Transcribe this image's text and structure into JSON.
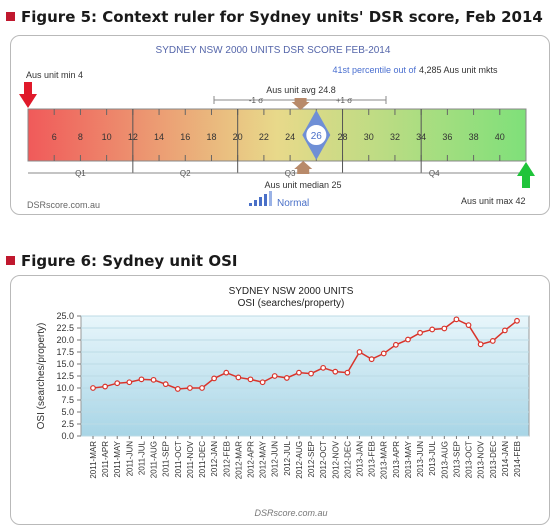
{
  "figure5": {
    "heading": "Figure 5: Context ruler for Sydney units' DSR score, Feb 2014",
    "ruler_title": "SYDNEY NSW 2000 UNITS DSR SCORE FEB-2014",
    "percentile_text": "41st percentile out of",
    "market_count": "4,285 Aus unit mkts",
    "min_label": "Aus unit min 4",
    "max_label": "Aus unit max 42",
    "avg_label": "Aus unit avg 24.8",
    "median_label": "Aus unit median 25",
    "sigma_left": "-1 σ",
    "sigma_right": "+1 σ",
    "score": "26",
    "signal": "Normal",
    "footer": "DSRscore.com.au",
    "quartiles": [
      "Q1",
      "Q2",
      "Q3",
      "Q4"
    ],
    "colors": {
      "low": "#f05a5a",
      "mid": "#e8d98a",
      "high": "#7fe07a",
      "marker": "#6f8fd6",
      "arrow_min": "#e0192a",
      "arrow_max": "#1fc43a"
    },
    "chart_data": {
      "type": "ruler",
      "min": 4,
      "max": 42,
      "ticks": [
        "6",
        "8",
        "10",
        "12",
        "14",
        "16",
        "18",
        "20",
        "22",
        "24",
        "26",
        "28",
        "30",
        "32",
        "34",
        "36",
        "38",
        "40"
      ],
      "score": 26,
      "average": 24.8,
      "median": 25,
      "quartile_bounds": [
        12,
        20,
        28,
        34
      ]
    }
  },
  "figure6": {
    "heading": "Figure 6: Sydney unit OSI",
    "footer": "DSRscore.com.au",
    "colors": {
      "line": "#d9342b",
      "marker_fill": "#ffffff",
      "plot_top": "#e8f6fb",
      "plot_bottom": "#a8d5e6"
    },
    "chart_data": {
      "type": "line",
      "title": "SYDNEY NSW 2000 UNITS",
      "subtitle": "OSI (searches/property)",
      "ylabel": "OSI (searches/property)",
      "xlabel": "",
      "ylim": [
        0,
        25
      ],
      "yticks": [
        "0.0",
        "2.5",
        "5.0",
        "7.5",
        "10.0",
        "12.5",
        "15.0",
        "17.5",
        "20.0",
        "22.5",
        "25.0"
      ],
      "categories": [
        "2011-MAR",
        "2011-APR",
        "2011-MAY",
        "2011-JUN",
        "2011-JUL",
        "2011-AUG",
        "2011-SEP",
        "2011-OCT",
        "2011-NOV",
        "2011-DEC",
        "2012-JAN",
        "2012-FEB",
        "2012-MAR",
        "2012-APR",
        "2012-MAY",
        "2012-JUN",
        "2012-JUL",
        "2012-AUG",
        "2012-SEP",
        "2012-OCT",
        "2012-NOV",
        "2012-DEC",
        "2013-JAN",
        "2013-FEB",
        "2013-MAR",
        "2013-APR",
        "2013-MAY",
        "2013-JUN",
        "2013-JUL",
        "2013-AUG",
        "2013-SEP",
        "2013-OCT",
        "2013-NOV",
        "2013-DEC",
        "2014-JAN",
        "2014-FEB"
      ],
      "values": [
        10.0,
        10.3,
        11.0,
        11.2,
        11.8,
        11.7,
        10.8,
        9.8,
        10.0,
        10.0,
        12.0,
        13.2,
        12.2,
        11.8,
        11.2,
        12.5,
        12.1,
        13.2,
        13.0,
        14.2,
        13.4,
        13.2,
        17.5,
        16.0,
        17.2,
        19.0,
        20.1,
        21.5,
        22.2,
        22.4,
        24.3,
        23.1,
        19.1,
        19.8,
        22.0,
        24.0
      ]
    }
  }
}
